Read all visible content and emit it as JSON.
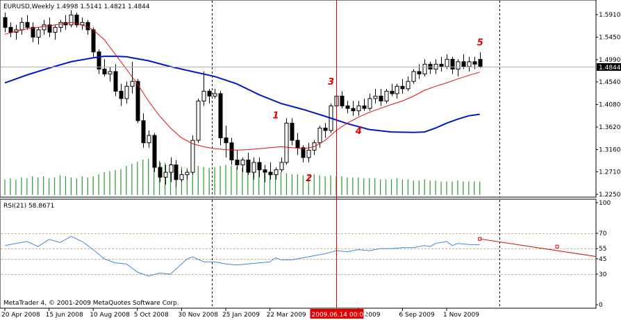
{
  "window": {
    "symbol_line": "EURUSD,Weekly  1.4998 1.5141 1.4821 1.4844",
    "copyright": "MetaTrader 4, © 2001-2009 MetaQuotes Software Corp."
  },
  "colors": {
    "background": "#ffffff",
    "bull_candle": "#ffffff",
    "bear_candle": "#000000",
    "ma_fast": "#e01010",
    "ma_slow": "#0018c8",
    "volume": "#2a9a2a",
    "rsi": "#3e88d8",
    "rsi_level": "#c8b48c",
    "trendline": "#d00000",
    "vline_cursor": "#c80000",
    "price_tag_bg": "#000000",
    "date_tag_bg": "#e00000"
  },
  "price_panel": {
    "current_price_label": "1.4844",
    "current_price": 1.4844
  },
  "rsi_panel": {
    "title": "RSI(21) 58.8671",
    "value": 58.8671
  },
  "cursor": {
    "date_label": "2009.06.14 00:00"
  },
  "wave_labels": [
    {
      "text": "1",
      "bar": 49,
      "price": 1.38
    },
    {
      "text": "2",
      "bar": 55,
      "price": 1.252
    },
    {
      "text": "3",
      "bar": 59,
      "price": 1.448
    },
    {
      "text": "4",
      "bar": 64,
      "price": 1.348
    },
    {
      "text": "5",
      "bar": 86,
      "price": 1.528
    }
  ],
  "chart_data": [
    {
      "type": "candlestick",
      "symbol": "EURUSD",
      "timeframe": "Weekly",
      "ohlc_header": {
        "open": 1.4998,
        "high": 1.5141,
        "low": 1.4821,
        "close": 1.4844
      },
      "y_ticks": [
        {
          "value": 1.591,
          "label": "1.5910"
        },
        {
          "value": 1.545,
          "label": "1.5450"
        },
        {
          "value": 1.499,
          "label": "1.4990"
        },
        {
          "value": 1.454,
          "label": "1.4540"
        },
        {
          "value": 1.408,
          "label": "1.4080"
        },
        {
          "value": 1.362,
          "label": "1.3620"
        },
        {
          "value": 1.316,
          "label": "1.3160"
        },
        {
          "value": 1.271,
          "label": "1.2710"
        },
        {
          "value": 1.225,
          "label": "1.2250"
        }
      ],
      "ylim": [
        1.225,
        1.615
      ],
      "x_tick_labels": [
        {
          "label": "20 Apr 2008",
          "bar": 0
        },
        {
          "label": "15 Jun 2008",
          "bar": 8
        },
        {
          "label": "10 Aug 2008",
          "bar": 16
        },
        {
          "label": "5 Oct 2008",
          "bar": 24
        },
        {
          "label": "30 Nov 2008",
          "bar": 32
        },
        {
          "label": "25 Jan 2009",
          "bar": 40
        },
        {
          "label": "22 Mar 2009",
          "bar": 48
        },
        {
          "label": "Jul 2009",
          "bar": 64
        },
        {
          "label": "6 Sep 2009",
          "bar": 72
        },
        {
          "label": "1 Nov 2009",
          "bar": 80
        }
      ],
      "period_separators_bars": [
        37.5,
        89.5
      ],
      "cursor_bar": 60,
      "bars_ohlc": [
        [
          1.585,
          1.595,
          1.555,
          1.565
        ],
        [
          1.565,
          1.575,
          1.545,
          1.555
        ],
        [
          1.555,
          1.57,
          1.54,
          1.56
        ],
        [
          1.56,
          1.585,
          1.55,
          1.575
        ],
        [
          1.575,
          1.59,
          1.56,
          1.565
        ],
        [
          1.565,
          1.575,
          1.535,
          1.545
        ],
        [
          1.545,
          1.565,
          1.53,
          1.56
        ],
        [
          1.56,
          1.58,
          1.55,
          1.57
        ],
        [
          1.57,
          1.585,
          1.545,
          1.555
        ],
        [
          1.555,
          1.57,
          1.54,
          1.565
        ],
        [
          1.565,
          1.58,
          1.555,
          1.575
        ],
        [
          1.575,
          1.59,
          1.56,
          1.57
        ],
        [
          1.57,
          1.6,
          1.565,
          1.59
        ],
        [
          1.59,
          1.595,
          1.565,
          1.57
        ],
        [
          1.57,
          1.585,
          1.56,
          1.575
        ],
        [
          1.575,
          1.58,
          1.55,
          1.56
        ],
        [
          1.56,
          1.565,
          1.505,
          1.515
        ],
        [
          1.515,
          1.52,
          1.47,
          1.48
        ],
        [
          1.48,
          1.5,
          1.465,
          1.47
        ],
        [
          1.47,
          1.485,
          1.455,
          1.475
        ],
        [
          1.475,
          1.49,
          1.425,
          1.435
        ],
        [
          1.435,
          1.45,
          1.405,
          1.42
        ],
        [
          1.42,
          1.455,
          1.41,
          1.445
        ],
        [
          1.445,
          1.495,
          1.43,
          1.455
        ],
        [
          1.455,
          1.46,
          1.37,
          1.375
        ],
        [
          1.375,
          1.39,
          1.32,
          1.33
        ],
        [
          1.33,
          1.355,
          1.32,
          1.345
        ],
        [
          1.345,
          1.35,
          1.27,
          1.28
        ],
        [
          1.28,
          1.29,
          1.25,
          1.26
        ],
        [
          1.26,
          1.285,
          1.245,
          1.27
        ],
        [
          1.27,
          1.3,
          1.25,
          1.285
        ],
        [
          1.285,
          1.295,
          1.24,
          1.255
        ],
        [
          1.255,
          1.275,
          1.25,
          1.265
        ],
        [
          1.265,
          1.275,
          1.255,
          1.27
        ],
        [
          1.27,
          1.345,
          1.265,
          1.335
        ],
        [
          1.335,
          1.42,
          1.33,
          1.415
        ],
        [
          1.415,
          1.475,
          1.405,
          1.435
        ],
        [
          1.435,
          1.44,
          1.41,
          1.425
        ],
        [
          1.425,
          1.44,
          1.42,
          1.43
        ],
        [
          1.43,
          1.435,
          1.325,
          1.34
        ],
        [
          1.34,
          1.365,
          1.3,
          1.33
        ],
        [
          1.33,
          1.34,
          1.285,
          1.295
        ],
        [
          1.295,
          1.315,
          1.275,
          1.285
        ],
        [
          1.285,
          1.3,
          1.27,
          1.295
        ],
        [
          1.295,
          1.31,
          1.265,
          1.27
        ],
        [
          1.27,
          1.3,
          1.255,
          1.29
        ],
        [
          1.29,
          1.3,
          1.26,
          1.275
        ],
        [
          1.275,
          1.285,
          1.25,
          1.27
        ],
        [
          1.27,
          1.29,
          1.255,
          1.265
        ],
        [
          1.265,
          1.28,
          1.255,
          1.275
        ],
        [
          1.275,
          1.3,
          1.27,
          1.29
        ],
        [
          1.29,
          1.38,
          1.285,
          1.37
        ],
        [
          1.37,
          1.38,
          1.325,
          1.335
        ],
        [
          1.335,
          1.35,
          1.305,
          1.32
        ],
        [
          1.32,
          1.325,
          1.29,
          1.3
        ],
        [
          1.3,
          1.33,
          1.29,
          1.315
        ],
        [
          1.315,
          1.335,
          1.305,
          1.33
        ],
        [
          1.33,
          1.365,
          1.32,
          1.36
        ],
        [
          1.36,
          1.37,
          1.34,
          1.355
        ],
        [
          1.355,
          1.41,
          1.35,
          1.405
        ],
        [
          1.405,
          1.435,
          1.4,
          1.425
        ],
        [
          1.425,
          1.435,
          1.4,
          1.405
        ],
        [
          1.405,
          1.415,
          1.39,
          1.4
        ],
        [
          1.4,
          1.415,
          1.385,
          1.395
        ],
        [
          1.395,
          1.415,
          1.385,
          1.405
        ],
        [
          1.405,
          1.42,
          1.395,
          1.4
        ],
        [
          1.4,
          1.43,
          1.395,
          1.42
        ],
        [
          1.42,
          1.44,
          1.41,
          1.425
        ],
        [
          1.425,
          1.44,
          1.405,
          1.415
        ],
        [
          1.415,
          1.44,
          1.41,
          1.435
        ],
        [
          1.435,
          1.45,
          1.425,
          1.43
        ],
        [
          1.43,
          1.45,
          1.42,
          1.445
        ],
        [
          1.445,
          1.46,
          1.43,
          1.44
        ],
        [
          1.44,
          1.465,
          1.435,
          1.455
        ],
        [
          1.455,
          1.48,
          1.45,
          1.475
        ],
        [
          1.475,
          1.49,
          1.46,
          1.47
        ],
        [
          1.47,
          1.5,
          1.465,
          1.49
        ],
        [
          1.49,
          1.495,
          1.47,
          1.48
        ],
        [
          1.48,
          1.5,
          1.47,
          1.49
        ],
        [
          1.49,
          1.505,
          1.475,
          1.485
        ],
        [
          1.485,
          1.51,
          1.48,
          1.5
        ],
        [
          1.5,
          1.505,
          1.47,
          1.48
        ],
        [
          1.48,
          1.5,
          1.465,
          1.495
        ],
        [
          1.495,
          1.51,
          1.48,
          1.485
        ],
        [
          1.485,
          1.505,
          1.475,
          1.495
        ],
        [
          1.495,
          1.505,
          1.48,
          1.49
        ],
        [
          1.4998,
          1.5141,
          1.4821,
          1.4844
        ]
      ],
      "ma_fast": [
        [
          0,
          1.551
        ],
        [
          4,
          1.562
        ],
        [
          8,
          1.568
        ],
        [
          12,
          1.575
        ],
        [
          14,
          1.57
        ],
        [
          16,
          1.56
        ],
        [
          18,
          1.54
        ],
        [
          20,
          1.51
        ],
        [
          22,
          1.48
        ],
        [
          24,
          1.45
        ],
        [
          26,
          1.415
        ],
        [
          28,
          1.385
        ],
        [
          30,
          1.36
        ],
        [
          32,
          1.34
        ],
        [
          34,
          1.328
        ],
        [
          36,
          1.322
        ],
        [
          38,
          1.318
        ],
        [
          40,
          1.316
        ],
        [
          42,
          1.315
        ],
        [
          44,
          1.316
        ],
        [
          46,
          1.318
        ],
        [
          48,
          1.32
        ],
        [
          50,
          1.322
        ],
        [
          52,
          1.32
        ],
        [
          54,
          1.318
        ],
        [
          56,
          1.322
        ],
        [
          58,
          1.335
        ],
        [
          60,
          1.355
        ],
        [
          62,
          1.37
        ],
        [
          64,
          1.382
        ],
        [
          66,
          1.392
        ],
        [
          68,
          1.4
        ],
        [
          70,
          1.408
        ],
        [
          72,
          1.415
        ],
        [
          74,
          1.425
        ],
        [
          76,
          1.437
        ],
        [
          78,
          1.445
        ],
        [
          80,
          1.452
        ],
        [
          82,
          1.46
        ],
        [
          84,
          1.467
        ],
        [
          86,
          1.474
        ]
      ],
      "ma_slow": [
        [
          0,
          1.452
        ],
        [
          4,
          1.468
        ],
        [
          8,
          1.482
        ],
        [
          12,
          1.495
        ],
        [
          16,
          1.503
        ],
        [
          18,
          1.506
        ],
        [
          20,
          1.506
        ],
        [
          22,
          1.505
        ],
        [
          26,
          1.497
        ],
        [
          30,
          1.485
        ],
        [
          34,
          1.475
        ],
        [
          38,
          1.465
        ],
        [
          42,
          1.45
        ],
        [
          46,
          1.428
        ],
        [
          50,
          1.41
        ],
        [
          54,
          1.398
        ],
        [
          58,
          1.384
        ],
        [
          62,
          1.369
        ],
        [
          66,
          1.357
        ],
        [
          70,
          1.352
        ],
        [
          74,
          1.351
        ],
        [
          76,
          1.352
        ],
        [
          78,
          1.36
        ],
        [
          80,
          1.37
        ],
        [
          82,
          1.378
        ],
        [
          84,
          1.385
        ],
        [
          86,
          1.388
        ]
      ],
      "volume_relative": [
        0.15,
        0.16,
        0.15,
        0.17,
        0.16,
        0.18,
        0.17,
        0.18,
        0.16,
        0.17,
        0.19,
        0.18,
        0.17,
        0.16,
        0.18,
        0.17,
        0.18,
        0.2,
        0.22,
        0.23,
        0.24,
        0.25,
        0.28,
        0.3,
        0.32,
        0.34,
        0.35,
        0.34,
        0.33,
        0.31,
        0.3,
        0.28,
        0.27,
        0.26,
        0.27,
        0.28,
        0.27,
        0.26,
        0.27,
        0.28,
        0.29,
        0.28,
        0.27,
        0.26,
        0.26,
        0.25,
        0.24,
        0.24,
        0.23,
        0.22,
        0.22,
        0.21,
        0.2,
        0.2,
        0.19,
        0.19,
        0.2,
        0.19,
        0.18,
        0.19,
        0.18,
        0.18,
        0.17,
        0.17,
        0.17,
        0.16,
        0.16,
        0.16,
        0.15,
        0.15,
        0.15,
        0.16,
        0.15,
        0.15,
        0.14,
        0.14,
        0.15,
        0.14,
        0.14,
        0.13,
        0.13,
        0.13,
        0.14,
        0.13,
        0.13,
        0.13,
        0.13
      ]
    },
    {
      "type": "line",
      "indicator": "RSI",
      "period": 21,
      "title": "RSI(21) 58.8671",
      "ylim": [
        0,
        100
      ],
      "y_ticks": [
        100,
        70,
        55,
        45,
        30,
        0
      ],
      "levels": [
        70,
        55,
        45,
        30
      ],
      "values": [
        [
          0,
          58
        ],
        [
          2,
          60
        ],
        [
          4,
          62
        ],
        [
          6,
          57
        ],
        [
          8,
          64
        ],
        [
          10,
          61
        ],
        [
          12,
          67
        ],
        [
          14,
          62
        ],
        [
          16,
          54
        ],
        [
          18,
          45
        ],
        [
          20,
          41
        ],
        [
          22,
          40
        ],
        [
          24,
          32
        ],
        [
          26,
          28
        ],
        [
          28,
          31
        ],
        [
          30,
          30
        ],
        [
          32,
          40
        ],
        [
          33,
          45
        ],
        [
          34,
          47
        ],
        [
          36,
          42
        ],
        [
          38,
          42
        ],
        [
          40,
          40
        ],
        [
          42,
          39
        ],
        [
          44,
          40
        ],
        [
          46,
          41
        ],
        [
          48,
          42
        ],
        [
          49,
          46
        ],
        [
          50,
          44
        ],
        [
          52,
          44
        ],
        [
          54,
          46
        ],
        [
          56,
          48
        ],
        [
          58,
          50
        ],
        [
          60,
          53
        ],
        [
          62,
          52
        ],
        [
          64,
          54
        ],
        [
          66,
          53
        ],
        [
          68,
          55
        ],
        [
          70,
          55
        ],
        [
          72,
          56
        ],
        [
          74,
          56
        ],
        [
          76,
          58
        ],
        [
          77,
          57
        ],
        [
          78,
          60
        ],
        [
          80,
          62
        ],
        [
          81,
          58
        ],
        [
          82,
          60
        ],
        [
          84,
          59
        ],
        [
          86,
          58.8671
        ]
      ],
      "trendline": {
        "points": [
          [
            86,
            64.5
          ],
          [
            100,
            57
          ]
        ],
        "extend_to_bar": 118,
        "markers": [
          [
            86,
            64.5
          ],
          [
            100,
            57
          ],
          [
            113,
            50.5
          ]
        ]
      }
    }
  ]
}
